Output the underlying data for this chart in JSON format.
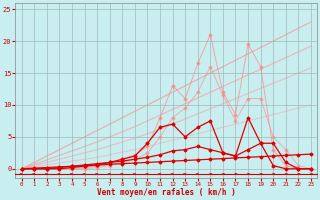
{
  "bg_color": "#c8eef0",
  "grid_color": "#a0b8b8",
  "line_color_dark": "#dd0000",
  "line_color_light1": "#ff8888",
  "line_color_light2": "#ffaaaa",
  "xlabel": "Vent moyen/en rafales ( km/h )",
  "xlabel_color": "#cc0000",
  "tick_color": "#cc0000",
  "arrow_color": "#cc0000",
  "xlim": [
    -0.5,
    23.5
  ],
  "ylim": [
    -1.5,
    26
  ],
  "yticks": [
    0,
    5,
    10,
    15,
    20,
    25
  ],
  "xticks": [
    0,
    1,
    2,
    3,
    4,
    5,
    6,
    7,
    8,
    9,
    10,
    11,
    12,
    13,
    14,
    15,
    16,
    17,
    18,
    19,
    20,
    21,
    22,
    23
  ],
  "series_light_diagonal": [
    [
      0,
      0.3,
      0.6,
      0.9,
      1.2,
      1.5,
      1.8,
      2.2,
      2.6,
      3.0,
      3.5,
      4.0,
      4.5,
      5.0,
      5.5,
      6.0,
      6.5,
      7.0,
      7.5,
      8.0,
      8.5,
      9.0,
      9.5,
      10.0
    ],
    [
      0,
      0.5,
      1.0,
      1.5,
      2.0,
      2.5,
      3.0,
      3.6,
      4.2,
      4.8,
      5.5,
      6.2,
      7.0,
      7.8,
      8.6,
      9.4,
      10.2,
      11.0,
      11.8,
      12.6,
      13.4,
      14.2,
      15.0,
      15.8
    ],
    [
      0,
      0.7,
      1.4,
      2.1,
      2.8,
      3.5,
      4.2,
      5.0,
      5.8,
      6.6,
      7.5,
      8.4,
      9.3,
      10.2,
      11.1,
      12.0,
      12.9,
      13.8,
      14.7,
      15.6,
      16.5,
      17.4,
      18.3,
      19.2
    ],
    [
      0,
      1.0,
      2.0,
      3.0,
      4.0,
      5.0,
      6.0,
      7.0,
      8.0,
      9.0,
      10.0,
      11.0,
      12.0,
      13.0,
      14.0,
      15.0,
      16.0,
      17.0,
      18.0,
      19.0,
      20.0,
      21.0,
      22.0,
      23.0
    ]
  ],
  "series_light_jagged": [
    [
      0,
      0,
      0,
      0,
      0,
      0.2,
      0.4,
      0.8,
      1.5,
      2.2,
      3.5,
      8.0,
      13.0,
      11.0,
      16.5,
      21.0,
      12.0,
      8.5,
      19.5,
      16.0,
      3.0,
      0.5,
      0,
      0
    ],
    [
      0,
      0,
      0,
      0,
      0,
      0,
      0.2,
      0.5,
      1.0,
      1.5,
      2.5,
      5.0,
      8.0,
      9.5,
      12.0,
      16.0,
      11.5,
      7.5,
      11.0,
      11.0,
      5.0,
      3.0,
      0.5,
      0
    ]
  ],
  "series_dark": [
    [
      0,
      0,
      0,
      0,
      0.2,
      0.4,
      0.6,
      1.0,
      1.5,
      2.0,
      4.0,
      6.5,
      7.0,
      5.0,
      6.5,
      7.5,
      2.5,
      2.0,
      8.0,
      4.0,
      0.5,
      0,
      0,
      0
    ],
    [
      0,
      0,
      0,
      0.2,
      0.4,
      0.6,
      0.8,
      1.0,
      1.2,
      1.5,
      1.8,
      2.2,
      2.8,
      3.0,
      3.5,
      3.0,
      2.5,
      2.0,
      3.0,
      4.0,
      4.0,
      1.0,
      0,
      0
    ],
    [
      0,
      0.1,
      0.2,
      0.3,
      0.4,
      0.5,
      0.6,
      0.7,
      0.8,
      0.9,
      1.0,
      1.1,
      1.2,
      1.3,
      1.4,
      1.5,
      1.6,
      1.7,
      1.8,
      1.9,
      2.0,
      2.1,
      2.2,
      2.3
    ]
  ]
}
